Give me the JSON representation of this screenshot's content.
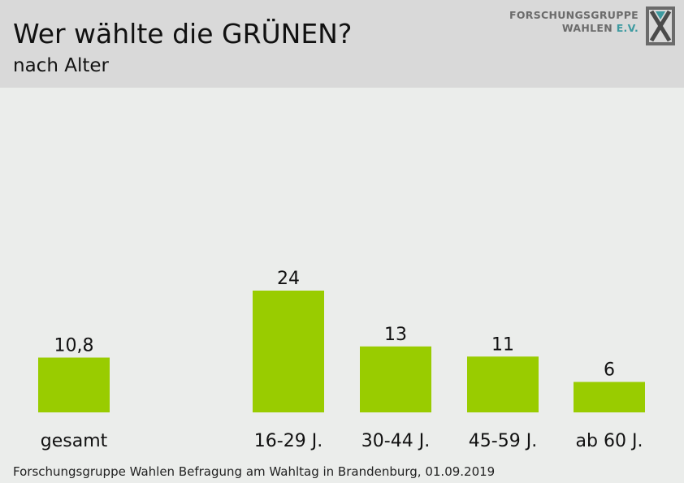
{
  "header": {
    "title": "Wer wählte die GRÜNEN?",
    "subtitle": "nach Alter"
  },
  "logo": {
    "line1": "FORSCHUNGSGRUPPE",
    "line2_main": "WAHLEN",
    "line2_suffix": "E.V.",
    "accent_color": "#3d9aa0",
    "icon": "x-ballot-icon"
  },
  "chart_data": {
    "type": "bar",
    "title": "Wer wählte die GRÜNEN?",
    "subtitle": "nach Alter",
    "categories": [
      "gesamt",
      "16-29 J.",
      "30-44 J.",
      "45-59 J.",
      "ab 60 J."
    ],
    "values": [
      10.8,
      24,
      13,
      11,
      6
    ],
    "value_labels": [
      "10,8",
      "24",
      "13",
      "11",
      "6"
    ],
    "bar_color": "#99cc00",
    "grid": false,
    "legend": "none"
  },
  "footer": {
    "source": "Forschungsgruppe Wahlen Befragung am Wahltag in Brandenburg, 01.09.2019"
  }
}
